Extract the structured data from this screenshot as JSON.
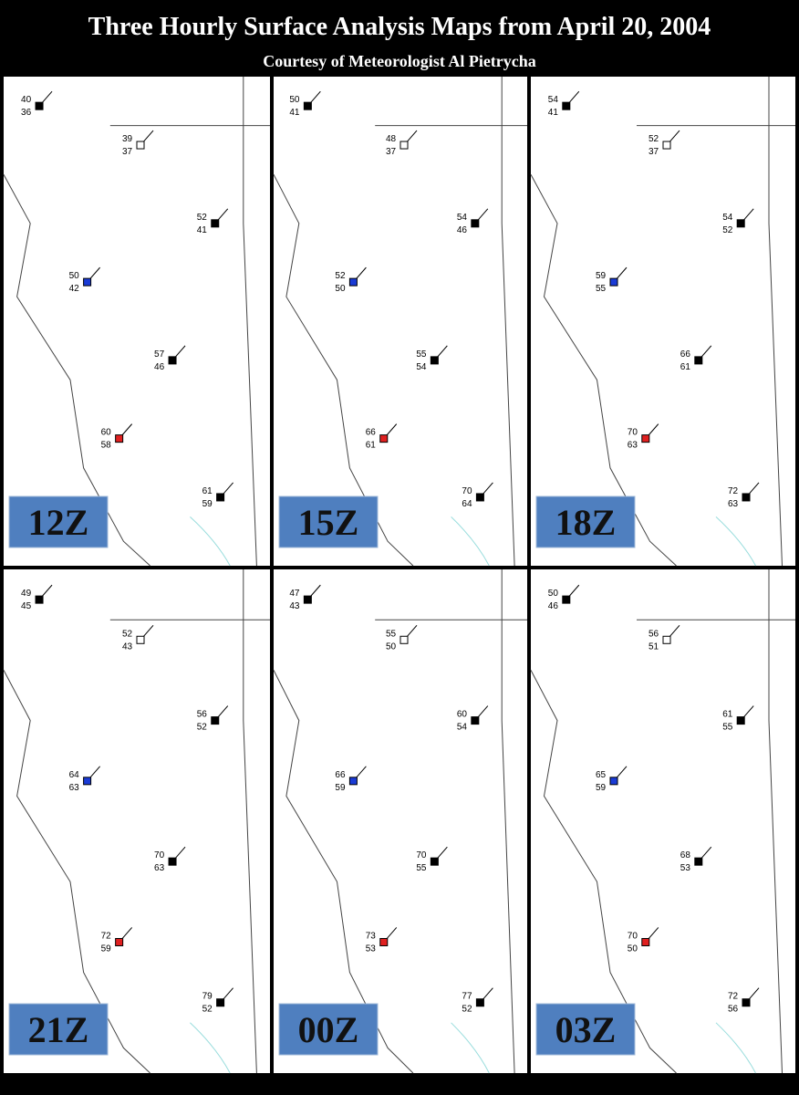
{
  "header": {
    "title": "Three Hourly Surface Analysis Maps from April 20, 2004",
    "subtitle": "Courtesy of Meteorologist Al Pietrycha"
  },
  "panels": [
    {
      "label": "12Z",
      "stations": [
        {
          "t": "40",
          "d": "36"
        },
        {
          "t": "39",
          "d": "37"
        },
        {
          "t": "52",
          "d": "41"
        },
        {
          "t": "50",
          "d": "42"
        },
        {
          "t": "57",
          "d": "46"
        },
        {
          "t": "60",
          "d": "58"
        },
        {
          "t": "61",
          "d": "59"
        }
      ]
    },
    {
      "label": "15Z",
      "stations": [
        {
          "t": "50",
          "d": "41"
        },
        {
          "t": "48",
          "d": "37"
        },
        {
          "t": "54",
          "d": "46"
        },
        {
          "t": "52",
          "d": "50"
        },
        {
          "t": "55",
          "d": "54"
        },
        {
          "t": "66",
          "d": "61"
        },
        {
          "t": "70",
          "d": "64"
        }
      ]
    },
    {
      "label": "18Z",
      "stations": [
        {
          "t": "54",
          "d": "41"
        },
        {
          "t": "52",
          "d": "37"
        },
        {
          "t": "54",
          "d": "52"
        },
        {
          "t": "59",
          "d": "55"
        },
        {
          "t": "66",
          "d": "61"
        },
        {
          "t": "70",
          "d": "63"
        },
        {
          "t": "72",
          "d": "63"
        }
      ]
    },
    {
      "label": "21Z",
      "stations": [
        {
          "t": "49",
          "d": "45"
        },
        {
          "t": "52",
          "d": "43"
        },
        {
          "t": "56",
          "d": "52"
        },
        {
          "t": "64",
          "d": "63"
        },
        {
          "t": "70",
          "d": "63"
        },
        {
          "t": "72",
          "d": "59"
        },
        {
          "t": "79",
          "d": "52"
        }
      ]
    },
    {
      "label": "00Z",
      "stations": [
        {
          "t": "47",
          "d": "43"
        },
        {
          "t": "55",
          "d": "50"
        },
        {
          "t": "60",
          "d": "54"
        },
        {
          "t": "66",
          "d": "59"
        },
        {
          "t": "70",
          "d": "55"
        },
        {
          "t": "73",
          "d": "53"
        },
        {
          "t": "77",
          "d": "52"
        }
      ]
    },
    {
      "label": "03Z",
      "stations": [
        {
          "t": "50",
          "d": "46"
        },
        {
          "t": "56",
          "d": "51"
        },
        {
          "t": "61",
          "d": "55"
        },
        {
          "t": "65",
          "d": "59"
        },
        {
          "t": "68",
          "d": "53"
        },
        {
          "t": "70",
          "d": "50"
        },
        {
          "t": "72",
          "d": "56"
        }
      ]
    }
  ]
}
